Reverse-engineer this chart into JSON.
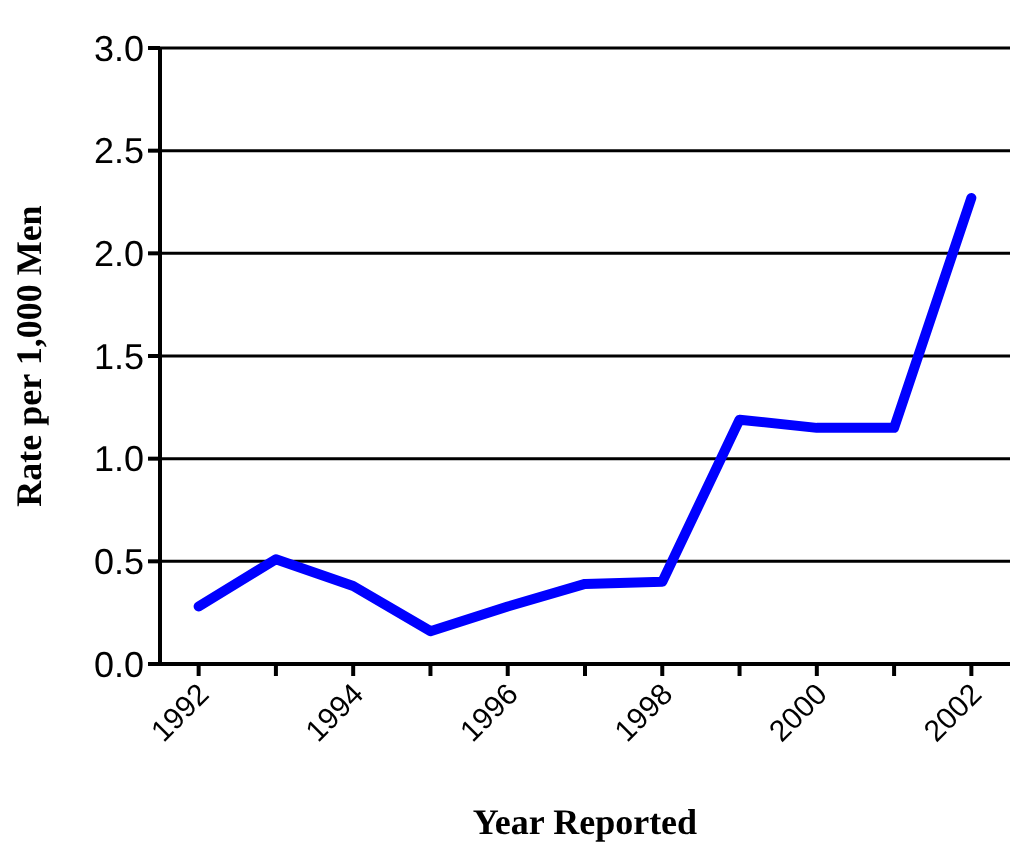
{
  "chart_data": {
    "type": "line",
    "xlabel": "Year Reported",
    "ylabel": "Rate per 1,000 Men",
    "categories": [
      "1992",
      null,
      "1994",
      null,
      "1996",
      null,
      "1998",
      null,
      "2000",
      null,
      "2002"
    ],
    "series": [
      {
        "color": "#0000ff",
        "values": [
          0.28,
          0.51,
          0.38,
          0.16,
          0.28,
          0.39,
          0.4,
          1.19,
          1.15,
          1.15,
          2.27
        ]
      }
    ],
    "ylim": [
      0,
      3
    ],
    "yticks": [
      {
        "value": 0,
        "label": "0.0"
      },
      {
        "value": 0.5,
        "label": "0.5"
      },
      {
        "value": 1,
        "label": "1.0"
      },
      {
        "value": 1.5,
        "label": "1.5"
      },
      {
        "value": 2,
        "label": "2.0"
      },
      {
        "value": 2.5,
        "label": "2.5"
      },
      {
        "value": 3,
        "label": "3.0"
      }
    ],
    "grid": "y",
    "marker": "none",
    "line_style": "solid"
  }
}
